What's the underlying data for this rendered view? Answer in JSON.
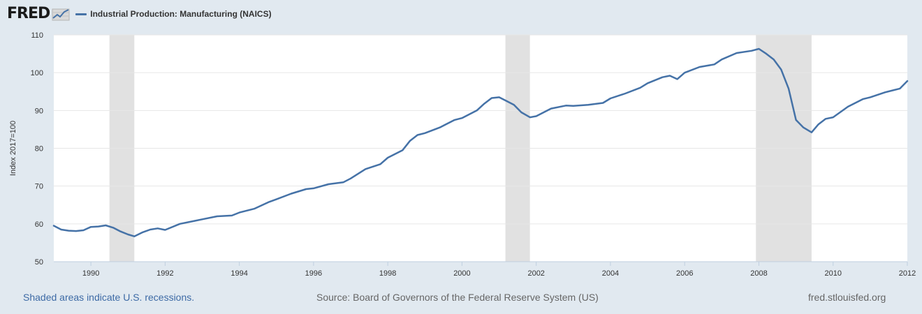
{
  "header": {
    "logo_text": "FRED",
    "logo_graph_icon": "line-chart-icon"
  },
  "footer": {
    "recession_note": "Shaded areas indicate U.S. recessions.",
    "source": "Source: Board of Governors of the Federal Reserve System (US)",
    "site": "fred.stlouisfed.org"
  },
  "colors": {
    "line": "#4572a7",
    "recession": "#e1e1e1",
    "plot_bg": "#ffffff",
    "page_bg": "#e1e9f0",
    "grid": "#e6e6e6"
  },
  "chart_data": {
    "type": "line",
    "title": "",
    "ylabel": "Index 2017=100",
    "xlabel": "",
    "xlim": [
      1989.0,
      2012.0
    ],
    "ylim": [
      50,
      110
    ],
    "x_ticks": [
      1990,
      1992,
      1994,
      1996,
      1998,
      2000,
      2002,
      2004,
      2006,
      2008,
      2010,
      2012
    ],
    "x_tick_labels": [
      "1990",
      "1992",
      "1994",
      "1996",
      "1998",
      "2000",
      "2002",
      "2004",
      "2006",
      "2008",
      "2010",
      "2012"
    ],
    "y_ticks": [
      50,
      60,
      70,
      80,
      90,
      100,
      110
    ],
    "y_tick_labels": [
      "50",
      "60",
      "70",
      "80",
      "90",
      "100",
      "110"
    ],
    "grid": true,
    "legend_position": "top-left",
    "recessions": [
      [
        1990.5,
        1991.17
      ],
      [
        2001.17,
        2001.83
      ],
      [
        2007.92,
        2009.42
      ]
    ],
    "series": [
      {
        "name": "Industrial Production: Manufacturing (NAICS)",
        "x": [
          1989.0,
          1989.2,
          1989.4,
          1989.6,
          1989.8,
          1990.0,
          1990.2,
          1990.4,
          1990.6,
          1990.8,
          1991.0,
          1991.17,
          1991.4,
          1991.6,
          1991.8,
          1992.0,
          1992.4,
          1992.8,
          1993.0,
          1993.4,
          1993.8,
          1994.0,
          1994.4,
          1994.8,
          1995.0,
          1995.4,
          1995.8,
          1996.0,
          1996.4,
          1996.8,
          1997.0,
          1997.4,
          1997.8,
          1998.0,
          1998.4,
          1998.6,
          1998.8,
          1999.0,
          1999.4,
          1999.8,
          2000.0,
          2000.4,
          2000.6,
          2000.8,
          2001.0,
          2001.2,
          2001.4,
          2001.6,
          2001.83,
          2002.0,
          2002.4,
          2002.8,
          2003.0,
          2003.4,
          2003.8,
          2004.0,
          2004.4,
          2004.8,
          2005.0,
          2005.4,
          2005.6,
          2005.8,
          2006.0,
          2006.4,
          2006.8,
          2007.0,
          2007.4,
          2007.8,
          2008.0,
          2008.2,
          2008.4,
          2008.6,
          2008.8,
          2009.0,
          2009.2,
          2009.42,
          2009.6,
          2009.8,
          2010.0,
          2010.4,
          2010.8,
          2011.0,
          2011.4,
          2011.8,
          2012.0
        ],
        "values": [
          59.5,
          58.5,
          58.2,
          58.1,
          58.3,
          59.2,
          59.3,
          59.6,
          59.0,
          58.0,
          57.2,
          56.7,
          57.8,
          58.5,
          58.8,
          58.4,
          60.0,
          60.8,
          61.2,
          62.0,
          62.2,
          63.0,
          64.0,
          65.8,
          66.5,
          68.0,
          69.2,
          69.4,
          70.5,
          71.0,
          72.0,
          74.5,
          75.8,
          77.5,
          79.5,
          82.0,
          83.5,
          84.0,
          85.5,
          87.5,
          88.0,
          90.0,
          91.8,
          93.3,
          93.5,
          92.5,
          91.5,
          89.5,
          88.2,
          88.5,
          90.5,
          91.3,
          91.2,
          91.5,
          92.0,
          93.2,
          94.5,
          96.0,
          97.2,
          98.8,
          99.2,
          98.3,
          100.0,
          101.5,
          102.2,
          103.5,
          105.2,
          105.8,
          106.3,
          105.0,
          103.5,
          100.8,
          95.8,
          87.5,
          85.5,
          84.2,
          86.3,
          87.8,
          88.2,
          91.0,
          93.0,
          93.5,
          94.8,
          95.8,
          97.8
        ]
      }
    ]
  }
}
